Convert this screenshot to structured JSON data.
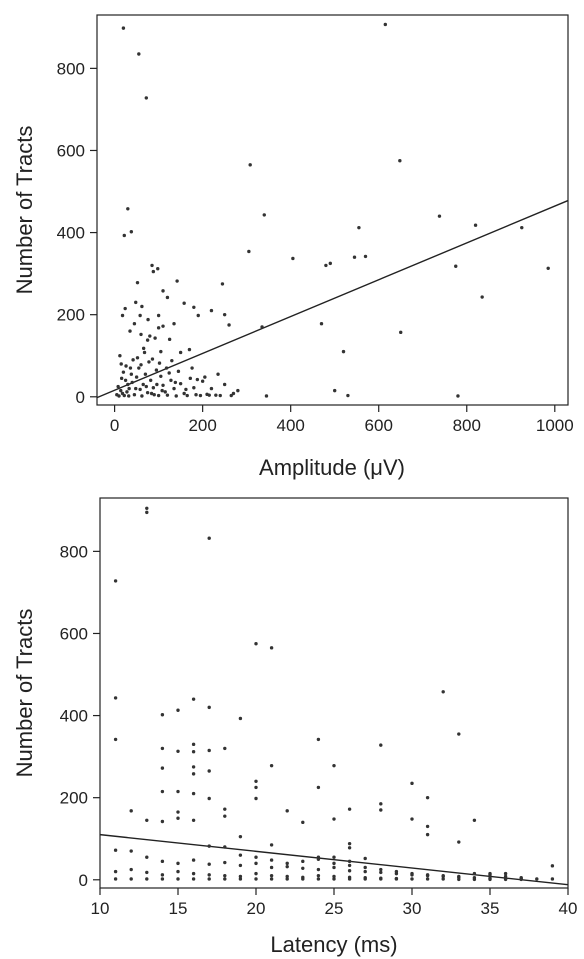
{
  "chart_data": [
    {
      "type": "scatter",
      "xlabel": "Amplitude (μV)",
      "ylabel": "Number of Tracts",
      "xlim": [
        -40,
        1030
      ],
      "ylim": [
        -20,
        930
      ],
      "xticks": [
        0,
        200,
        400,
        600,
        800,
        1000
      ],
      "yticks": [
        0,
        200,
        400,
        600,
        800
      ],
      "regression_line": {
        "x": [
          -40,
          1030
        ],
        "y": [
          -2,
          478
        ]
      },
      "points": [
        [
          20,
          898
        ],
        [
          55,
          835
        ],
        [
          72,
          728
        ],
        [
          615,
          907
        ],
        [
          308,
          565
        ],
        [
          648,
          575
        ],
        [
          30,
          458
        ],
        [
          340,
          443
        ],
        [
          738,
          440
        ],
        [
          820,
          418
        ],
        [
          925,
          412
        ],
        [
          985,
          313
        ],
        [
          38,
          402
        ],
        [
          22,
          393
        ],
        [
          555,
          412
        ],
        [
          405,
          337
        ],
        [
          545,
          340
        ],
        [
          570,
          342
        ],
        [
          305,
          354
        ],
        [
          490,
          325
        ],
        [
          480,
          320
        ],
        [
          775,
          318
        ],
        [
          470,
          178
        ],
        [
          650,
          157
        ],
        [
          835,
          243
        ],
        [
          520,
          110
        ],
        [
          500,
          15
        ],
        [
          530,
          3
        ],
        [
          780,
          2
        ],
        [
          345,
          2
        ],
        [
          85,
          320
        ],
        [
          98,
          312
        ],
        [
          52,
          278
        ],
        [
          142,
          282
        ],
        [
          24,
          215
        ],
        [
          18,
          198
        ],
        [
          48,
          230
        ],
        [
          62,
          220
        ],
        [
          110,
          258
        ],
        [
          120,
          242
        ],
        [
          158,
          228
        ],
        [
          180,
          218
        ],
        [
          190,
          198
        ],
        [
          220,
          210
        ],
        [
          245,
          275
        ],
        [
          250,
          200
        ],
        [
          260,
          175
        ],
        [
          335,
          170
        ],
        [
          80,
          148
        ],
        [
          75,
          138
        ],
        [
          92,
          143
        ],
        [
          100,
          198
        ],
        [
          105,
          110
        ],
        [
          68,
          108
        ],
        [
          130,
          88
        ],
        [
          150,
          108
        ],
        [
          170,
          115
        ],
        [
          60,
          152
        ],
        [
          45,
          178
        ],
        [
          35,
          160
        ],
        [
          12,
          100
        ],
        [
          15,
          80
        ],
        [
          20,
          60
        ],
        [
          25,
          40
        ],
        [
          30,
          30
        ],
        [
          8,
          25
        ],
        [
          14,
          15
        ],
        [
          18,
          8
        ],
        [
          22,
          3
        ],
        [
          28,
          12
        ],
        [
          33,
          20
        ],
        [
          40,
          35
        ],
        [
          45,
          5
        ],
        [
          50,
          48
        ],
        [
          55,
          70
        ],
        [
          58,
          18
        ],
        [
          62,
          2
        ],
        [
          65,
          30
        ],
        [
          70,
          55
        ],
        [
          75,
          10
        ],
        [
          78,
          85
        ],
        [
          82,
          40
        ],
        [
          88,
          22
        ],
        [
          90,
          5
        ],
        [
          95,
          65
        ],
        [
          100,
          3
        ],
        [
          105,
          50
        ],
        [
          110,
          28
        ],
        [
          115,
          12
        ],
        [
          120,
          4
        ],
        [
          128,
          40
        ],
        [
          135,
          20
        ],
        [
          140,
          2
        ],
        [
          145,
          62
        ],
        [
          150,
          32
        ],
        [
          158,
          8
        ],
        [
          165,
          3
        ],
        [
          172,
          45
        ],
        [
          180,
          22
        ],
        [
          185,
          5
        ],
        [
          195,
          3
        ],
        [
          200,
          38
        ],
        [
          205,
          48
        ],
        [
          210,
          6
        ],
        [
          220,
          20
        ],
        [
          230,
          4
        ],
        [
          240,
          3
        ],
        [
          250,
          30
        ],
        [
          270,
          8
        ],
        [
          36,
          70
        ],
        [
          42,
          90
        ],
        [
          52,
          95
        ],
        [
          66,
          118
        ],
        [
          86,
          92
        ],
        [
          102,
          82
        ],
        [
          118,
          70
        ],
        [
          5,
          5
        ],
        [
          10,
          2
        ],
        [
          16,
          45
        ],
        [
          26,
          75
        ],
        [
          32,
          2
        ],
        [
          38,
          55
        ],
        [
          48,
          20
        ],
        [
          60,
          78
        ],
        [
          72,
          25
        ],
        [
          84,
          8
        ],
        [
          96,
          30
        ],
        [
          108,
          15
        ],
        [
          124,
          58
        ],
        [
          138,
          35
        ],
        [
          162,
          18
        ],
        [
          176,
          70
        ],
        [
          188,
          42
        ],
        [
          215,
          4
        ],
        [
          235,
          55
        ],
        [
          265,
          3
        ],
        [
          280,
          15
        ],
        [
          125,
          140
        ],
        [
          100,
          168
        ],
        [
          88,
          305
        ],
        [
          110,
          172
        ],
        [
          76,
          188
        ],
        [
          58,
          198
        ],
        [
          135,
          178
        ]
      ]
    },
    {
      "type": "scatter",
      "xlabel": "Latency (ms)",
      "ylabel": "Number of Tracts",
      "xlim": [
        10,
        40
      ],
      "ylim": [
        -20,
        930
      ],
      "xticks": [
        10,
        15,
        20,
        25,
        30,
        35,
        40
      ],
      "yticks": [
        0,
        200,
        400,
        600,
        800
      ],
      "regression_line": {
        "x": [
          10,
          40
        ],
        "y": [
          110,
          -12
        ]
      },
      "points": [
        [
          13,
          905
        ],
        [
          13,
          895
        ],
        [
          17,
          832
        ],
        [
          11,
          728
        ],
        [
          20,
          575
        ],
        [
          21,
          565
        ],
        [
          32,
          458
        ],
        [
          11,
          443
        ],
        [
          16,
          440
        ],
        [
          17,
          420
        ],
        [
          14,
          402
        ],
        [
          15,
          413
        ],
        [
          19,
          393
        ],
        [
          33,
          355
        ],
        [
          11,
          342
        ],
        [
          16,
          330
        ],
        [
          24,
          342
        ],
        [
          28,
          328
        ],
        [
          14,
          320
        ],
        [
          15,
          313
        ],
        [
          16,
          312
        ],
        [
          17,
          315
        ],
        [
          18,
          320
        ],
        [
          21,
          278
        ],
        [
          25,
          278
        ],
        [
          14,
          272
        ],
        [
          16,
          275
        ],
        [
          17,
          265
        ],
        [
          16,
          258
        ],
        [
          20,
          240
        ],
        [
          30,
          235
        ],
        [
          20,
          225
        ],
        [
          15,
          215
        ],
        [
          14,
          215
        ],
        [
          16,
          210
        ],
        [
          24,
          225
        ],
        [
          31,
          200
        ],
        [
          17,
          198
        ],
        [
          20,
          198
        ],
        [
          34,
          145
        ],
        [
          18,
          172
        ],
        [
          26,
          172
        ],
        [
          15,
          165
        ],
        [
          12,
          168
        ],
        [
          13,
          145
        ],
        [
          14,
          142
        ],
        [
          15,
          150
        ],
        [
          16,
          145
        ],
        [
          18,
          155
        ],
        [
          22,
          168
        ],
        [
          23,
          140
        ],
        [
          25,
          148
        ],
        [
          28,
          185
        ],
        [
          28,
          170
        ],
        [
          31,
          130
        ],
        [
          30,
          148
        ],
        [
          19,
          105
        ],
        [
          31,
          110
        ],
        [
          18,
          80
        ],
        [
          21,
          85
        ],
        [
          17,
          82
        ],
        [
          24,
          55
        ],
        [
          26,
          88
        ],
        [
          26,
          78
        ],
        [
          27,
          52
        ],
        [
          12,
          70
        ],
        [
          11,
          72
        ],
        [
          13,
          55
        ],
        [
          14,
          45
        ],
        [
          15,
          40
        ],
        [
          16,
          48
        ],
        [
          17,
          38
        ],
        [
          18,
          42
        ],
        [
          19,
          35
        ],
        [
          20,
          40
        ],
        [
          21,
          30
        ],
        [
          22,
          32
        ],
        [
          23,
          28
        ],
        [
          24,
          25
        ],
        [
          25,
          30
        ],
        [
          26,
          22
        ],
        [
          27,
          20
        ],
        [
          28,
          18
        ],
        [
          29,
          15
        ],
        [
          30,
          12
        ],
        [
          31,
          10
        ],
        [
          32,
          8
        ],
        [
          33,
          6
        ],
        [
          34,
          5
        ],
        [
          35,
          4
        ],
        [
          36,
          3
        ],
        [
          37,
          2
        ],
        [
          38,
          2
        ],
        [
          39,
          34
        ],
        [
          39,
          2
        ],
        [
          11,
          20
        ],
        [
          12,
          25
        ],
        [
          13,
          18
        ],
        [
          14,
          12
        ],
        [
          15,
          20
        ],
        [
          16,
          15
        ],
        [
          17,
          12
        ],
        [
          18,
          10
        ],
        [
          19,
          8
        ],
        [
          20,
          15
        ],
        [
          21,
          10
        ],
        [
          22,
          8
        ],
        [
          23,
          6
        ],
        [
          24,
          10
        ],
        [
          25,
          8
        ],
        [
          26,
          6
        ],
        [
          27,
          5
        ],
        [
          28,
          4
        ],
        [
          29,
          3
        ],
        [
          30,
          2
        ],
        [
          31,
          2
        ],
        [
          32,
          2
        ],
        [
          33,
          1
        ],
        [
          34,
          1
        ],
        [
          35,
          1
        ],
        [
          36,
          1
        ],
        [
          37,
          1
        ],
        [
          11,
          2
        ],
        [
          12,
          2
        ],
        [
          13,
          2
        ],
        [
          14,
          2
        ],
        [
          15,
          2
        ],
        [
          16,
          2
        ],
        [
          17,
          2
        ],
        [
          18,
          2
        ],
        [
          19,
          2
        ],
        [
          20,
          2
        ],
        [
          21,
          2
        ],
        [
          22,
          2
        ],
        [
          23,
          2
        ],
        [
          24,
          2
        ],
        [
          25,
          2
        ],
        [
          26,
          2
        ],
        [
          27,
          2
        ],
        [
          28,
          2
        ],
        [
          29,
          2
        ],
        [
          25,
          40
        ],
        [
          26,
          35
        ],
        [
          27,
          30
        ],
        [
          28,
          25
        ],
        [
          29,
          20
        ],
        [
          30,
          15
        ],
        [
          31,
          12
        ],
        [
          32,
          10
        ],
        [
          33,
          8
        ],
        [
          34,
          15
        ],
        [
          35,
          12
        ],
        [
          36,
          8
        ],
        [
          37,
          5
        ],
        [
          24,
          50
        ],
        [
          25,
          55
        ],
        [
          26,
          45
        ],
        [
          23,
          45
        ],
        [
          22,
          40
        ],
        [
          21,
          48
        ],
        [
          20,
          55
        ],
        [
          19,
          60
        ],
        [
          33,
          92
        ],
        [
          35,
          15
        ],
        [
          36,
          15
        ]
      ]
    }
  ]
}
